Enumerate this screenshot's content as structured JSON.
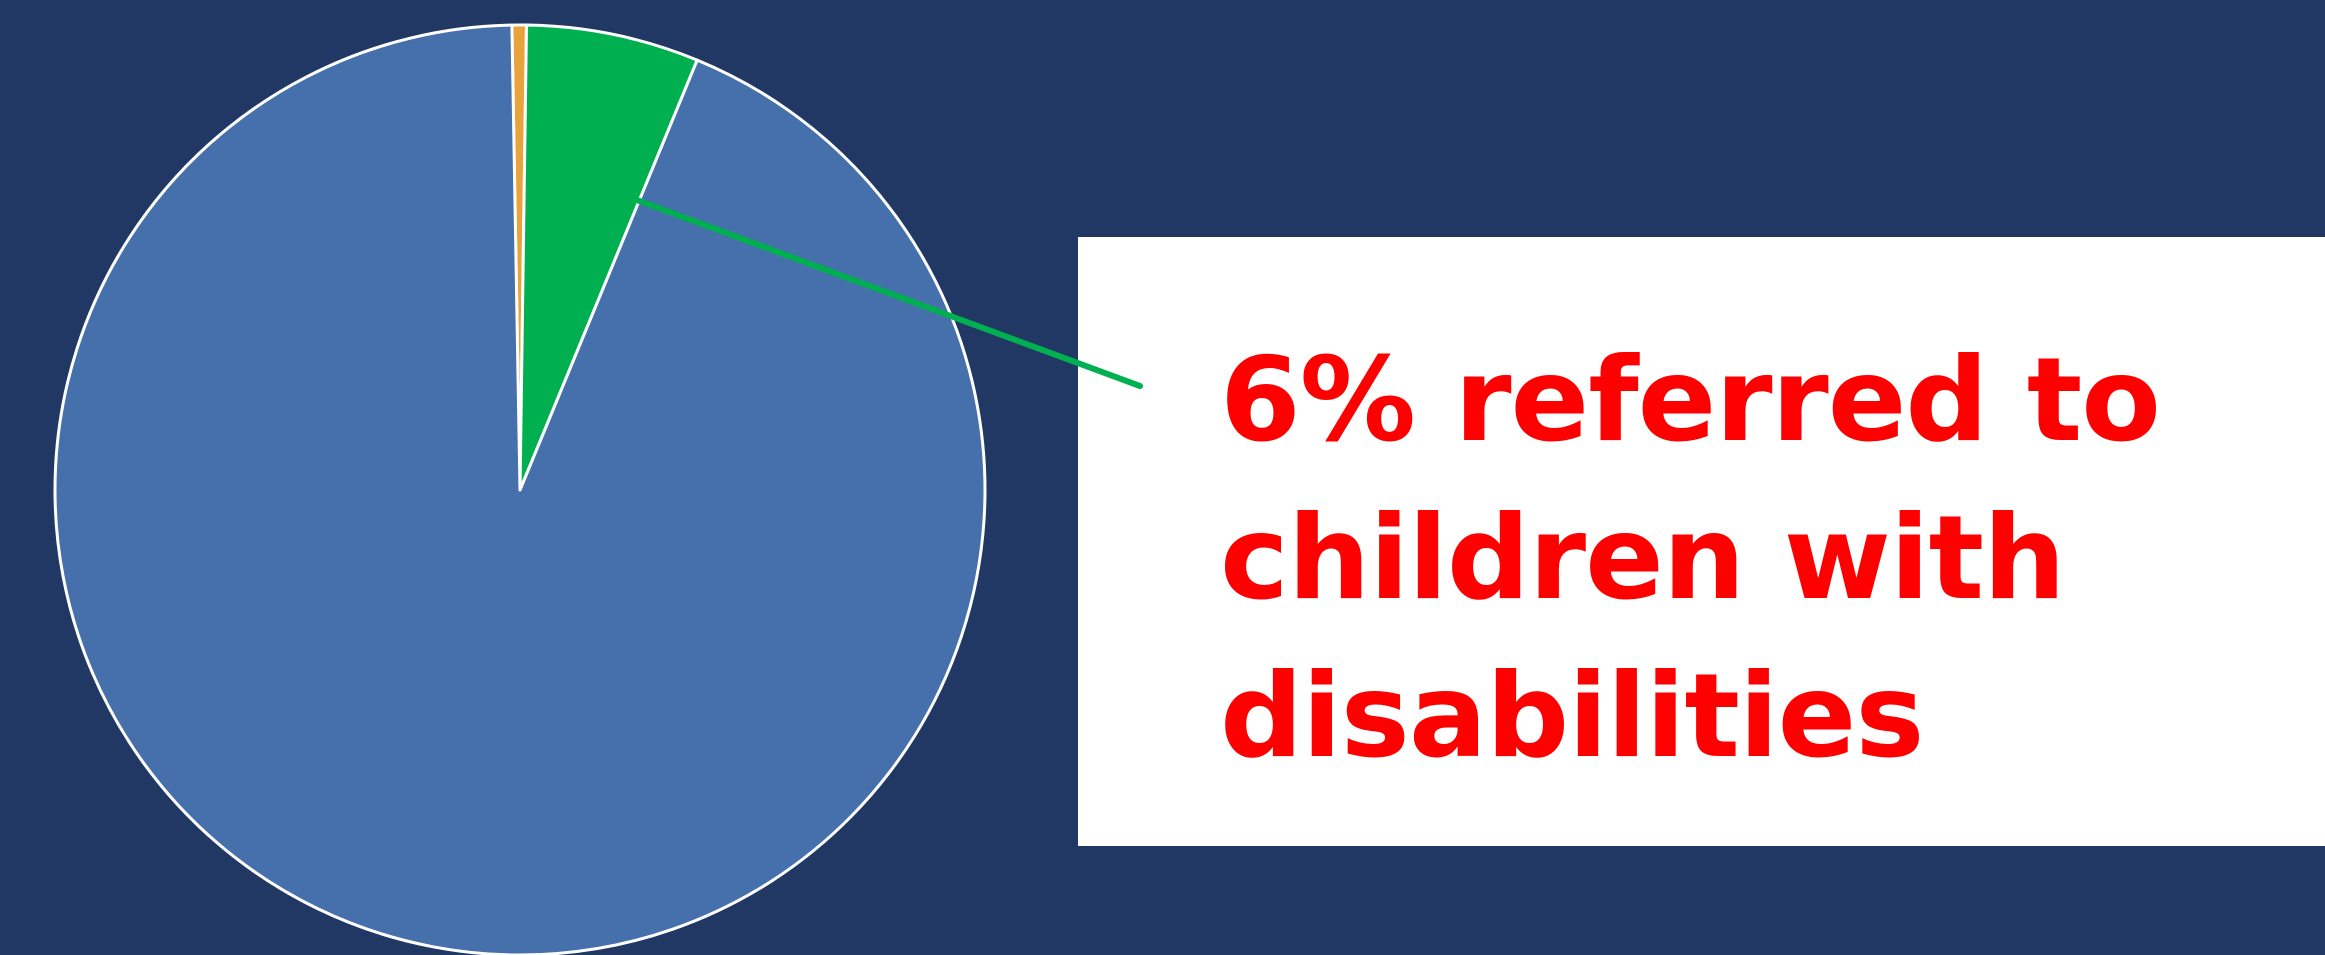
{
  "chart_data": {
    "type": "pie",
    "title": "",
    "series": [
      {
        "values": [
          0.5,
          6,
          93.5
        ],
        "colors": [
          "#e8a33c",
          "#00b050",
          "#4570ab"
        ]
      }
    ],
    "start_angle_deg": -1,
    "slice_border_color": "#ffffff",
    "leader_line_color": "#00b050",
    "annotation": {
      "text": "6% referred to children with disabilities",
      "color": "#ff0000",
      "box_color": "#ffffff",
      "points_to_slice": 1
    }
  },
  "colors": {
    "background": "#213864"
  }
}
